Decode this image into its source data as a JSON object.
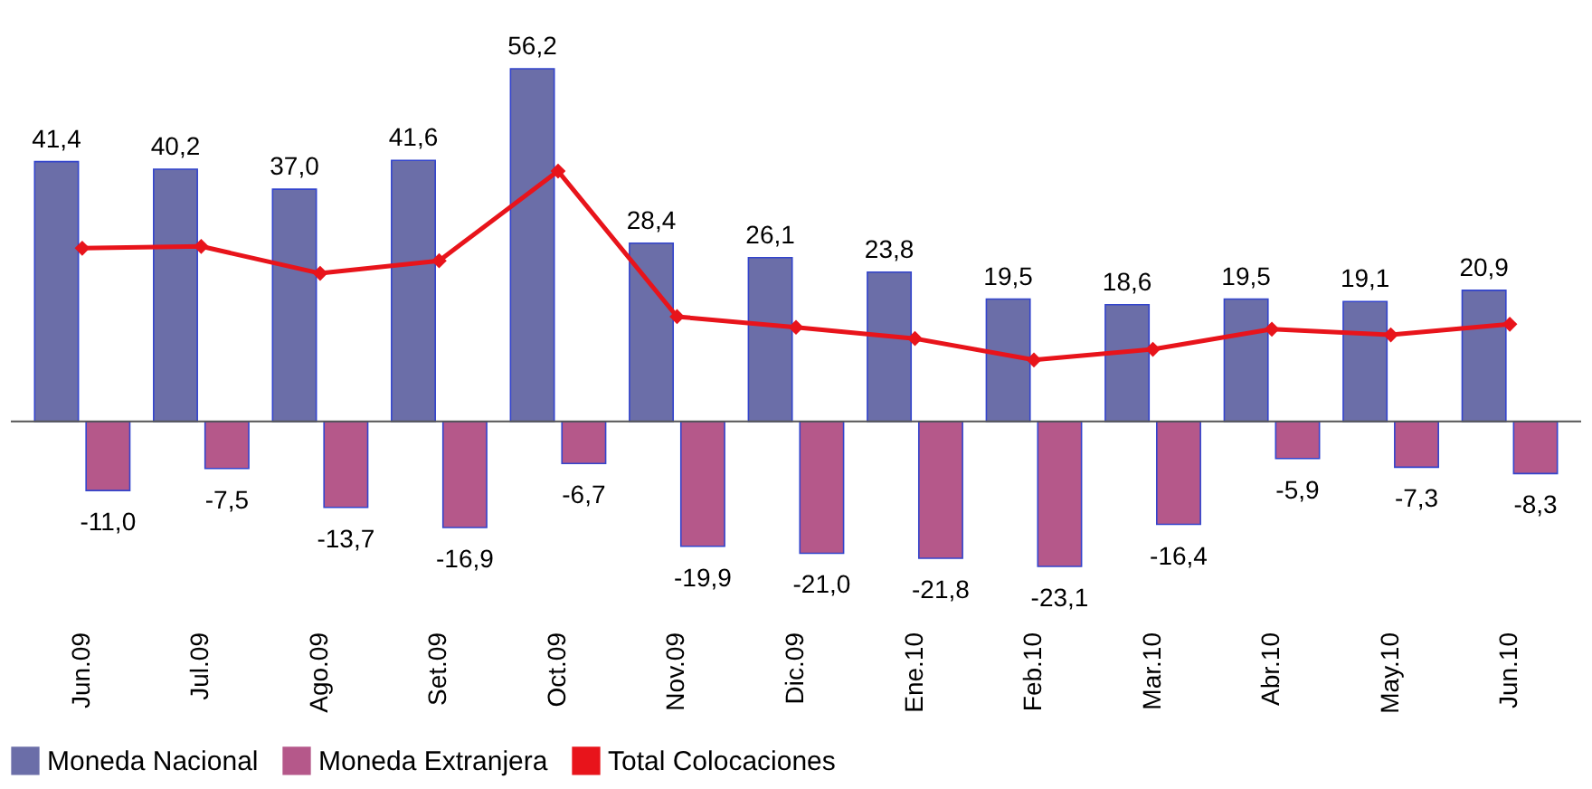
{
  "chart_data": {
    "type": "bar",
    "categories": [
      "Jun.09",
      "Jul.09",
      "Ago.09",
      "Set.09",
      "Oct.09",
      "Nov.09",
      "Dic.09",
      "Ene.10",
      "Feb.10",
      "Mar.10",
      "Abr.10",
      "May.10",
      "Jun.10"
    ],
    "series": [
      {
        "name": "Moneda Nacional",
        "color": "#6b6ea8",
        "values": [
          41.4,
          40.2,
          37.0,
          41.6,
          56.2,
          28.4,
          26.1,
          23.8,
          19.5,
          18.6,
          19.5,
          19.1,
          20.9
        ],
        "value_labels": [
          "41,4",
          "40,2",
          "37,0",
          "41,6",
          "56,2",
          "28,4",
          "26,1",
          "23,8",
          "19,5",
          "18,6",
          "19,5",
          "19,1",
          "20,9"
        ]
      },
      {
        "name": "Moneda Extranjera",
        "color": "#b5588a",
        "values": [
          -11.0,
          -7.5,
          -13.7,
          -16.9,
          -6.7,
          -19.9,
          -21.0,
          -21.8,
          -23.1,
          -16.4,
          -5.9,
          -7.3,
          -8.3
        ],
        "value_labels": [
          "-11,0",
          "-7,5",
          "-13,7",
          "-16,9",
          "-6,7",
          "-19,9",
          "-21,0",
          "-21,8",
          "-23,1",
          "-16,4",
          "-5,9",
          "-7,3",
          "-8,3"
        ]
      },
      {
        "name": "Total Colocaciones",
        "type": "line",
        "color": "#e8141b",
        "marker": "diamond",
        "values": [
          27.6,
          27.9,
          23.6,
          25.6,
          39.9,
          16.7,
          15.0,
          13.2,
          9.8,
          11.5,
          14.7,
          13.8,
          15.5
        ]
      }
    ],
    "tick_labels": "x",
    "legend": "bottom",
    "grid": false
  }
}
